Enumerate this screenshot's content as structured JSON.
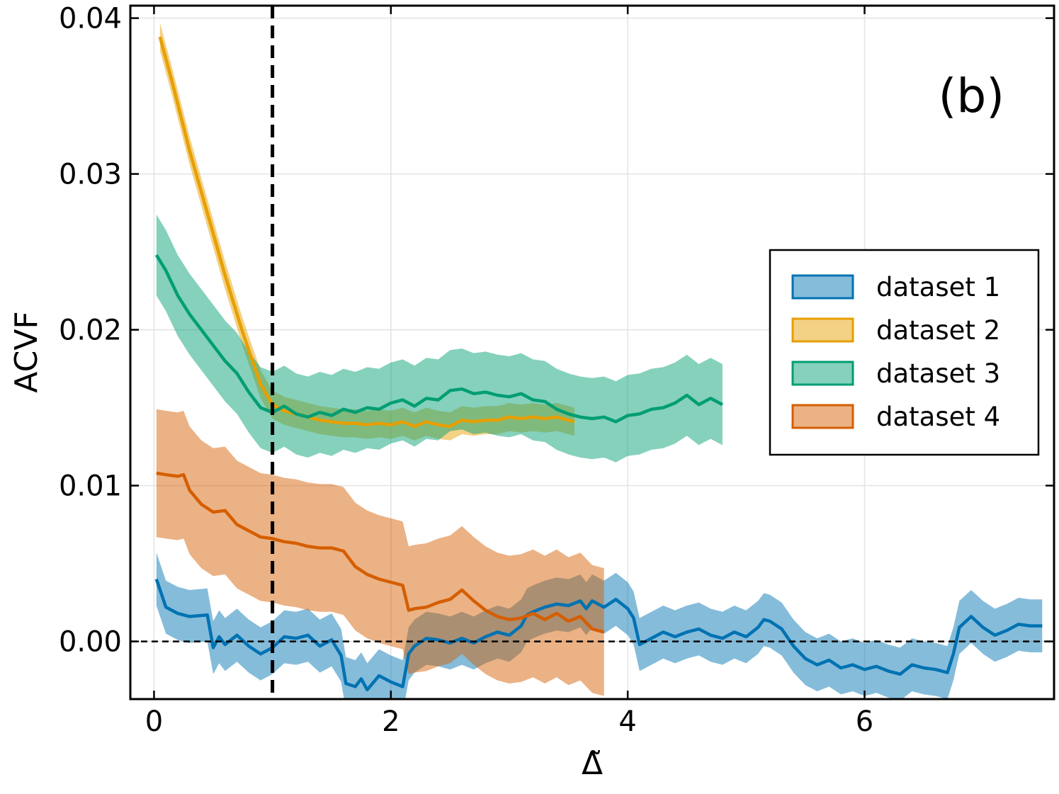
{
  "chart_data": {
    "type": "line",
    "panel_label": "(b)",
    "xlabel": "Δ̃",
    "ylabel": "ACVF",
    "xlim": [
      -0.2,
      7.6
    ],
    "ylim": [
      -0.0037,
      0.0408
    ],
    "xticks": [
      0,
      2,
      4,
      6
    ],
    "xtick_labels": [
      "0",
      "2",
      "4",
      "6"
    ],
    "yticks": [
      0.0,
      0.01,
      0.02,
      0.03,
      0.04
    ],
    "ytick_labels": [
      "0.00",
      "0.01",
      "0.02",
      "0.03",
      "0.04"
    ],
    "grid": true,
    "legend_position": "center-right",
    "reference_lines": [
      {
        "orientation": "horizontal",
        "value": 0.0,
        "style": "dashed"
      },
      {
        "orientation": "vertical",
        "value": 1.0,
        "style": "dashed-thick"
      }
    ],
    "series": [
      {
        "name": "dataset 1",
        "color": "#0072b2",
        "x": [
          0.02,
          0.1,
          0.2,
          0.3,
          0.45,
          0.5,
          0.55,
          0.6,
          0.7,
          0.8,
          0.9,
          1.0,
          1.1,
          1.2,
          1.3,
          1.4,
          1.5,
          1.58,
          1.62,
          1.7,
          1.75,
          1.8,
          1.9,
          2.0,
          2.1,
          2.15,
          2.2,
          2.3,
          2.4,
          2.5,
          2.6,
          2.7,
          2.8,
          2.9,
          3.0,
          3.1,
          3.15,
          3.2,
          3.3,
          3.4,
          3.5,
          3.6,
          3.65,
          3.7,
          3.8,
          3.9,
          4.0,
          4.05,
          4.1,
          4.2,
          4.3,
          4.4,
          4.5,
          4.6,
          4.7,
          4.8,
          4.9,
          5.0,
          5.1,
          5.15,
          5.2,
          5.3,
          5.4,
          5.5,
          5.6,
          5.7,
          5.8,
          5.9,
          6.0,
          6.1,
          6.2,
          6.3,
          6.4,
          6.5,
          6.6,
          6.7,
          6.75,
          6.8,
          6.9,
          7.0,
          7.1,
          7.2,
          7.3,
          7.4,
          7.5
        ],
        "mean": [
          0.004,
          0.0022,
          0.0018,
          0.0016,
          0.0017,
          -0.0004,
          0.0003,
          -0.0002,
          0.0004,
          -0.0003,
          -0.0008,
          -0.0004,
          0.0003,
          0.0002,
          0.0004,
          -0.0003,
          0.0001,
          -0.0009,
          -0.0027,
          -0.0029,
          -0.0024,
          -0.0031,
          -0.0022,
          -0.0026,
          -0.0029,
          -0.0008,
          -0.0003,
          0.0002,
          0.0001,
          -0.0001,
          0.0002,
          -0.0001,
          0.0003,
          0.0006,
          0.0004,
          0.001,
          0.0017,
          0.0019,
          0.0022,
          0.0024,
          0.0023,
          0.0026,
          0.0021,
          0.0026,
          0.0022,
          0.0027,
          0.0021,
          0.0015,
          -0.0002,
          0.0002,
          0.0006,
          0.0003,
          0.0006,
          0.0008,
          0.0004,
          0.0002,
          0.0006,
          0.0003,
          0.0009,
          0.0014,
          0.0013,
          0.0008,
          -0.0003,
          -0.0011,
          -0.0015,
          -0.0012,
          -0.0017,
          -0.0015,
          -0.0018,
          -0.0016,
          -0.0019,
          -0.0021,
          -0.0015,
          -0.0017,
          -0.0018,
          -0.002,
          -0.0008,
          0.0009,
          0.0016,
          0.0009,
          0.0004,
          0.0007,
          0.0011,
          0.001,
          0.001
        ],
        "half_width": 0.0017
      },
      {
        "name": "dataset 2",
        "color": "#e69f00",
        "x": [
          0.05,
          0.15,
          0.3,
          0.45,
          0.6,
          0.75,
          0.9,
          1.0,
          1.1,
          1.2,
          1.3,
          1.4,
          1.5,
          1.6,
          1.7,
          1.8,
          1.9,
          2.0,
          2.1,
          2.2,
          2.3,
          2.4,
          2.5,
          2.6,
          2.7,
          2.8,
          2.9,
          3.0,
          3.1,
          3.2,
          3.3,
          3.4,
          3.55
        ],
        "mean": [
          0.0388,
          0.036,
          0.0315,
          0.0275,
          0.0235,
          0.0198,
          0.0165,
          0.0152,
          0.0148,
          0.0146,
          0.0144,
          0.0142,
          0.0141,
          0.014,
          0.014,
          0.0139,
          0.014,
          0.0139,
          0.0141,
          0.0138,
          0.0141,
          0.0139,
          0.0138,
          0.0142,
          0.0141,
          0.0142,
          0.0142,
          0.0144,
          0.0143,
          0.0144,
          0.0143,
          0.0144,
          0.0141
        ],
        "half_width": 0.0009
      },
      {
        "name": "dataset 3",
        "color": "#009e73",
        "x": [
          0.02,
          0.1,
          0.2,
          0.3,
          0.4,
          0.5,
          0.6,
          0.7,
          0.8,
          0.9,
          1.0,
          1.1,
          1.2,
          1.3,
          1.4,
          1.5,
          1.6,
          1.7,
          1.8,
          1.9,
          2.0,
          2.1,
          2.2,
          2.3,
          2.4,
          2.5,
          2.6,
          2.7,
          2.8,
          2.9,
          3.0,
          3.1,
          3.2,
          3.3,
          3.4,
          3.5,
          3.6,
          3.7,
          3.8,
          3.9,
          4.0,
          4.1,
          4.2,
          4.3,
          4.4,
          4.5,
          4.6,
          4.7,
          4.8
        ],
        "mean": [
          0.0248,
          0.0238,
          0.0222,
          0.021,
          0.02,
          0.019,
          0.018,
          0.0172,
          0.016,
          0.015,
          0.0147,
          0.0151,
          0.0146,
          0.0144,
          0.0147,
          0.0145,
          0.0149,
          0.0147,
          0.015,
          0.0149,
          0.0153,
          0.0155,
          0.0151,
          0.0156,
          0.0155,
          0.0161,
          0.0162,
          0.0159,
          0.016,
          0.0158,
          0.0157,
          0.0159,
          0.0155,
          0.0154,
          0.0149,
          0.0146,
          0.0144,
          0.0143,
          0.0144,
          0.0141,
          0.0145,
          0.0146,
          0.0149,
          0.015,
          0.0153,
          0.0158,
          0.0152,
          0.0156,
          0.0152
        ],
        "half_width": 0.0026
      },
      {
        "name": "dataset 4",
        "color": "#d55e00",
        "x": [
          0.02,
          0.1,
          0.2,
          0.25,
          0.3,
          0.4,
          0.5,
          0.6,
          0.7,
          0.8,
          0.9,
          1.0,
          1.1,
          1.2,
          1.3,
          1.4,
          1.5,
          1.6,
          1.7,
          1.8,
          1.9,
          2.0,
          2.1,
          2.15,
          2.2,
          2.3,
          2.4,
          2.5,
          2.6,
          2.7,
          2.8,
          2.9,
          3.0,
          3.1,
          3.2,
          3.3,
          3.4,
          3.5,
          3.6,
          3.7,
          3.8
        ],
        "mean": [
          0.0108,
          0.0107,
          0.0106,
          0.0107,
          0.0097,
          0.0088,
          0.0083,
          0.0084,
          0.0075,
          0.0071,
          0.0067,
          0.0066,
          0.0064,
          0.0063,
          0.0061,
          0.006,
          0.006,
          0.0058,
          0.0048,
          0.0043,
          0.004,
          0.0038,
          0.0036,
          0.002,
          0.0021,
          0.0022,
          0.0025,
          0.0027,
          0.0033,
          0.0026,
          0.002,
          0.0016,
          0.0014,
          0.0015,
          0.0018,
          0.0014,
          0.0018,
          0.0013,
          0.0016,
          0.0008,
          0.0006
        ],
        "half_width": 0.0041
      }
    ]
  }
}
